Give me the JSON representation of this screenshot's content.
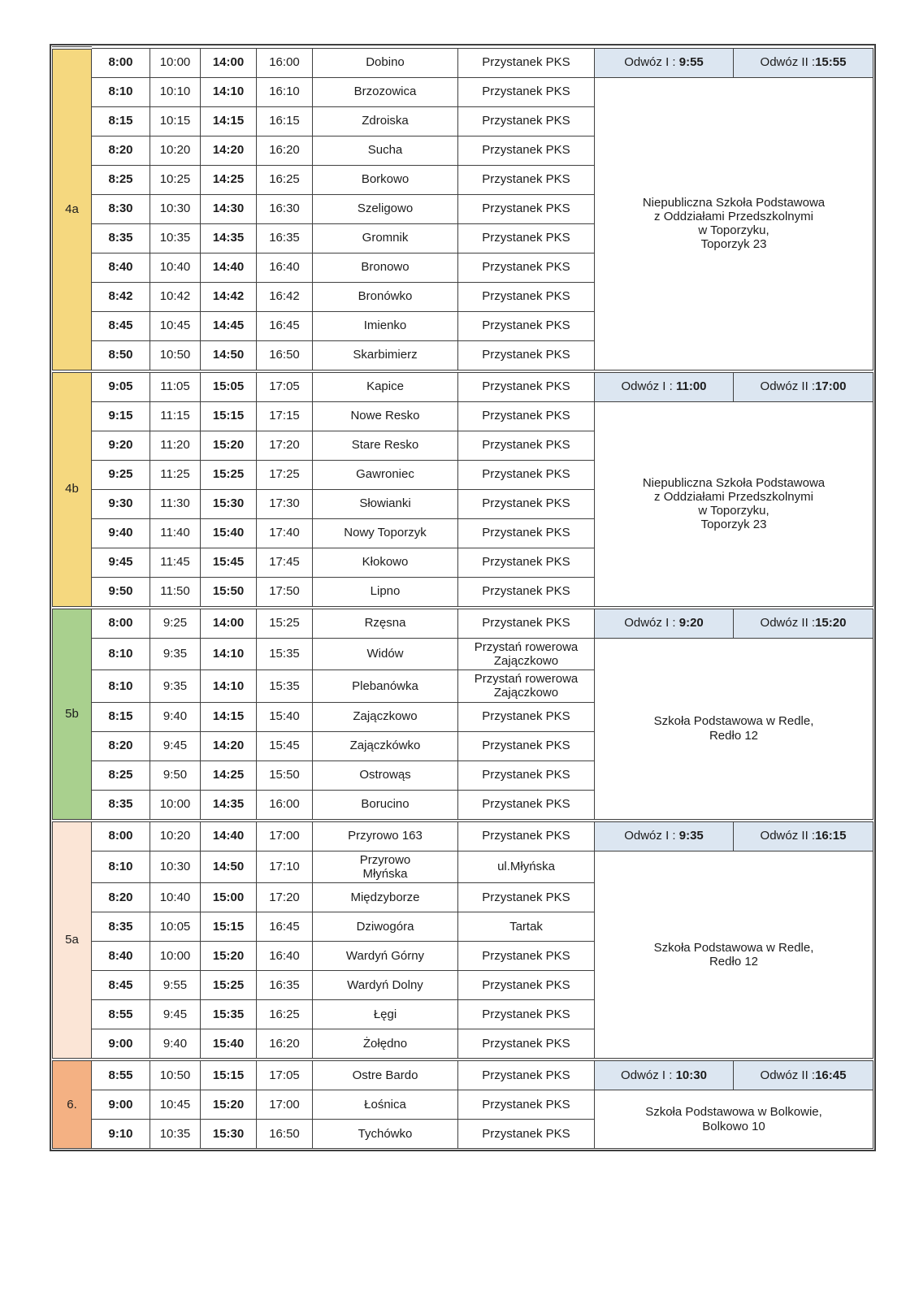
{
  "document": {
    "type": "school-bus-timetable",
    "language": "pl"
  },
  "colors": {
    "border": "#3f3f3f",
    "odwoz_header_bg": "#dce6f1",
    "section_4a_bg": "#f5d87f",
    "section_4b_bg": "#f5d87f",
    "section_5b_bg": "#a9d08e",
    "section_5a_bg": "#fbe5d6",
    "section_6_bg": "#f4b183"
  },
  "sections": [
    {
      "label": "4a",
      "label_color": "#f5d87f",
      "odwoz": [
        {
          "label": "Odwóz I : ",
          "time": "9:55"
        },
        {
          "label": "Odwóz II :",
          "time": "15:55"
        }
      ],
      "school": "Niepubliczna Szkoła Podstawowa\nz Oddziałami Przedszkolnymi\nw Toporzyku,\nToporzyk 23",
      "rows": [
        {
          "times": [
            "8:00",
            "10:00",
            "14:00",
            "16:00"
          ],
          "place": "Dobino",
          "stop": "Przystanek PKS"
        },
        {
          "times": [
            "8:10",
            "10:10",
            "14:10",
            "16:10"
          ],
          "place": "Brzozowica",
          "stop": "Przystanek PKS"
        },
        {
          "times": [
            "8:15",
            "10:15",
            "14:15",
            "16:15"
          ],
          "place": "Zdroiska",
          "stop": "Przystanek PKS"
        },
        {
          "times": [
            "8:20",
            "10:20",
            "14:20",
            "16:20"
          ],
          "place": "Sucha",
          "stop": "Przystanek PKS"
        },
        {
          "times": [
            "8:25",
            "10:25",
            "14:25",
            "16:25"
          ],
          "place": "Borkowo",
          "stop": "Przystanek PKS"
        },
        {
          "times": [
            "8:30",
            "10:30",
            "14:30",
            "16:30"
          ],
          "place": "Szeligowo",
          "stop": "Przystanek PKS"
        },
        {
          "times": [
            "8:35",
            "10:35",
            "14:35",
            "16:35"
          ],
          "place": "Gromnik",
          "stop": "Przystanek PKS"
        },
        {
          "times": [
            "8:40",
            "10:40",
            "14:40",
            "16:40"
          ],
          "place": "Bronowo",
          "stop": "Przystanek PKS"
        },
        {
          "times": [
            "8:42",
            "10:42",
            "14:42",
            "16:42"
          ],
          "place": "Bronówko",
          "stop": "Przystanek PKS"
        },
        {
          "times": [
            "8:45",
            "10:45",
            "14:45",
            "16:45"
          ],
          "place": "Imienko",
          "stop": "Przystanek PKS"
        },
        {
          "times": [
            "8:50",
            "10:50",
            "14:50",
            "16:50"
          ],
          "place": "Skarbimierz",
          "stop": "Przystanek PKS"
        }
      ]
    },
    {
      "label": "4b",
      "label_color": "#f5d87f",
      "odwoz": [
        {
          "label": "Odwóz I : ",
          "time": "11:00"
        },
        {
          "label": "Odwóz II :",
          "time": "17:00"
        }
      ],
      "school": "Niepubliczna Szkoła Podstawowa\nz Oddziałami Przedszkolnymi\nw Toporzyku,\nToporzyk 23",
      "rows": [
        {
          "times": [
            "9:05",
            "11:05",
            "15:05",
            "17:05"
          ],
          "place": "Kapice",
          "stop": "Przystanek PKS"
        },
        {
          "times": [
            "9:15",
            "11:15",
            "15:15",
            "17:15"
          ],
          "place": "Nowe Resko",
          "stop": "Przystanek PKS"
        },
        {
          "times": [
            "9:20",
            "11:20",
            "15:20",
            "17:20"
          ],
          "place": "Stare Resko",
          "stop": "Przystanek PKS"
        },
        {
          "times": [
            "9:25",
            "11:25",
            "15:25",
            "17:25"
          ],
          "place": "Gawroniec",
          "stop": "Przystanek PKS"
        },
        {
          "times": [
            "9:30",
            "11:30",
            "15:30",
            "17:30"
          ],
          "place": "Słowianki",
          "stop": "Przystanek PKS"
        },
        {
          "times": [
            "9:40",
            "11:40",
            "15:40",
            "17:40"
          ],
          "place": "Nowy Toporzyk",
          "stop": "Przystanek PKS"
        },
        {
          "times": [
            "9:45",
            "11:45",
            "15:45",
            "17:45"
          ],
          "place": "Kłokowo",
          "stop": "Przystanek PKS"
        },
        {
          "times": [
            "9:50",
            "11:50",
            "15:50",
            "17:50"
          ],
          "place": "Lipno",
          "stop": "Przystanek PKS"
        }
      ]
    },
    {
      "label": "5b",
      "label_color": "#a9d08e",
      "odwoz": [
        {
          "label": "Odwóz I : ",
          "time": "9:20"
        },
        {
          "label": "Odwóz II :",
          "time": "15:20"
        }
      ],
      "school": "Szkoła Podstawowa w Redle,\nRedło 12",
      "rows": [
        {
          "times": [
            "8:00",
            "9:25",
            "14:00",
            "15:25"
          ],
          "place": "Rzęsna",
          "stop": "Przystanek PKS"
        },
        {
          "times": [
            "8:10",
            "9:35",
            "14:10",
            "15:35"
          ],
          "place": "Widów",
          "stop": "Przystań rowerowa\nZajączkowo"
        },
        {
          "times": [
            "8:10",
            "9:35",
            "14:10",
            "15:35"
          ],
          "place": "Plebanówka",
          "stop": "Przystań rowerowa\nZajączkowo"
        },
        {
          "times": [
            "8:15",
            "9:40",
            "14:15",
            "15:40"
          ],
          "place": "Zajączkowo",
          "stop": "Przystanek PKS"
        },
        {
          "times": [
            "8:20",
            "9:45",
            "14:20",
            "15:45"
          ],
          "place": "Zajączkówko",
          "stop": "Przystanek PKS"
        },
        {
          "times": [
            "8:25",
            "9:50",
            "14:25",
            "15:50"
          ],
          "place": "Ostrowąs",
          "stop": "Przystanek PKS"
        },
        {
          "times": [
            "8:35",
            "10:00",
            "14:35",
            "16:00"
          ],
          "place": "Borucino",
          "stop": "Przystanek PKS"
        }
      ]
    },
    {
      "label": "5a",
      "label_color": "#fbe5d6",
      "odwoz": [
        {
          "label": "Odwóz I : ",
          "time": "9:35"
        },
        {
          "label": "Odwóz II :",
          "time": "16:15"
        }
      ],
      "school": "Szkoła Podstawowa w Redle,\nRedło 12",
      "rows": [
        {
          "times": [
            "8:00",
            "10:20",
            "14:40",
            "17:00"
          ],
          "place": "Przyrowo 163",
          "stop": "Przystanek PKS"
        },
        {
          "times": [
            "8:10",
            "10:30",
            "14:50",
            "17:10"
          ],
          "place": "Przyrowo\nMłyńska",
          "stop": "ul.Młyńska"
        },
        {
          "times": [
            "8:20",
            "10:40",
            "15:00",
            "17:20"
          ],
          "place": "Międzyborze",
          "stop": "Przystanek PKS"
        },
        {
          "times": [
            "8:35",
            "10:05",
            "15:15",
            "16:45"
          ],
          "place": "Dziwogóra",
          "stop": "Tartak"
        },
        {
          "times": [
            "8:40",
            "10:00",
            "15:20",
            "16:40"
          ],
          "place": "Wardyń Górny",
          "stop": "Przystanek PKS"
        },
        {
          "times": [
            "8:45",
            "9:55",
            "15:25",
            "16:35"
          ],
          "place": "Wardyń Dolny",
          "stop": "Przystanek PKS"
        },
        {
          "times": [
            "8:55",
            "9:45",
            "15:35",
            "16:25"
          ],
          "place": "Łęgi",
          "stop": "Przystanek PKS"
        },
        {
          "times": [
            "9:00",
            "9:40",
            "15:40",
            "16:20"
          ],
          "place": "Żołędno",
          "stop": "Przystanek PKS"
        }
      ]
    },
    {
      "label": "6.",
      "label_color": "#f4b183",
      "odwoz": [
        {
          "label": "Odwóz I : ",
          "time": "10:30"
        },
        {
          "label": "Odwóz II :",
          "time": "16:45"
        }
      ],
      "school": "Szkoła Podstawowa w Bolkowie,\nBolkowo 10",
      "rows": [
        {
          "times": [
            "8:55",
            "10:50",
            "15:15",
            "17:05"
          ],
          "place": "Ostre Bardo",
          "stop": "Przystanek PKS"
        },
        {
          "times": [
            "9:00",
            "10:45",
            "15:20",
            "17:00"
          ],
          "place": "Łośnica",
          "stop": "Przystanek PKS"
        },
        {
          "times": [
            "9:10",
            "10:35",
            "15:30",
            "16:50"
          ],
          "place": "Tychówko",
          "stop": "Przystanek PKS"
        }
      ]
    }
  ]
}
